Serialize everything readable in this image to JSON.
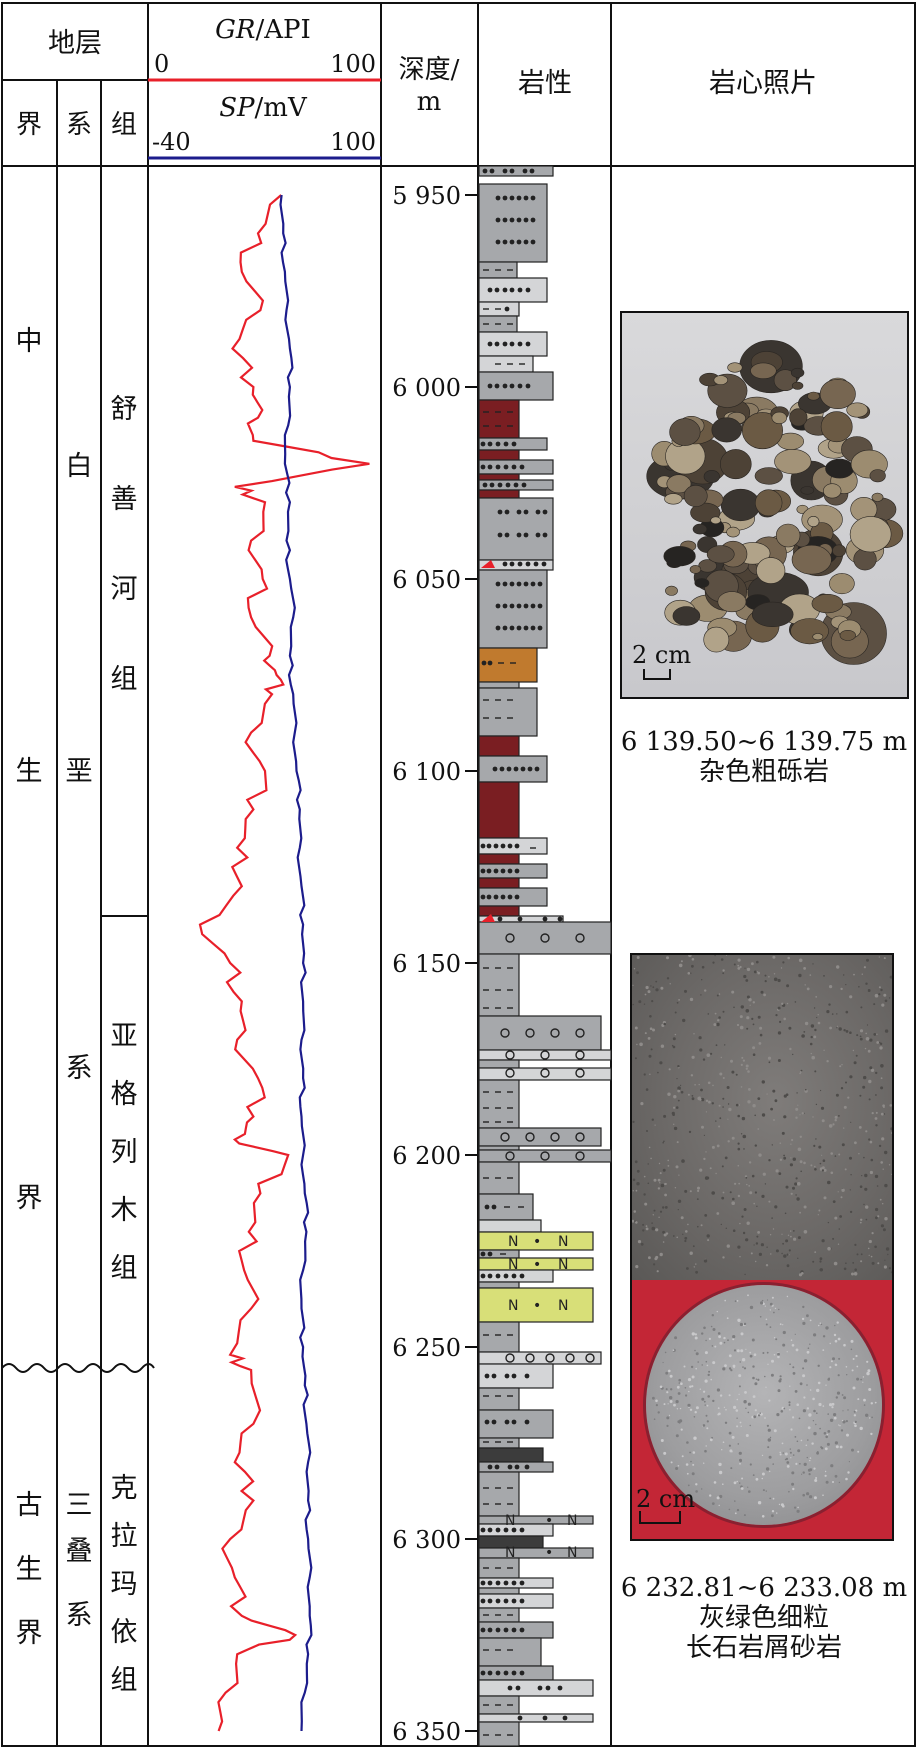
{
  "header": {
    "strata": "地层",
    "era": "界",
    "system": "系",
    "formation": "组",
    "gr_label": "GR",
    "gr_unit": "/API",
    "gr_min": "0",
    "gr_max": "100",
    "sp_label": "SP",
    "sp_unit": "/mV",
    "sp_min": "-40",
    "sp_max": "100",
    "depth_label": "深度/",
    "depth_unit": "m",
    "lithology": "岩性",
    "core_photos": "岩心照片"
  },
  "units": {
    "era_mesozoic": [
      "中",
      "生",
      "界"
    ],
    "era_paleozoic": [
      "古",
      "生",
      "界"
    ],
    "system_cretaceous": [
      "白",
      "垩",
      "系"
    ],
    "system_triassic": [
      "三",
      "叠",
      "系"
    ],
    "formation_shushanhe": [
      "舒",
      "善",
      "河",
      "组"
    ],
    "formation_yageliemu": [
      "亚",
      "格",
      "列",
      "木",
      "组"
    ],
    "formation_kelamayiyi": [
      "克",
      "拉",
      "玛",
      "依",
      "组"
    ]
  },
  "depth_ticks": [
    "5 950",
    "6 000",
    "6 050",
    "6 100",
    "6 150",
    "6 200",
    "6 250",
    "6 300",
    "6 350"
  ],
  "photos": [
    {
      "scale_label": "2 cm",
      "depth_caption": "6 139.50~6 139.75 m",
      "lith_caption": [
        "杂色粗砾岩"
      ]
    },
    {
      "scale_label": "2 cm",
      "depth_caption": "6 232.81~6 233.08 m",
      "lith_caption": [
        "灰绿色细粒",
        "长石岩屑砂岩"
      ]
    }
  ],
  "colors": {
    "gr_curve": "#e8202a",
    "sp_curve": "#1c1c8c",
    "lith_gray": "#a6a8ab",
    "lith_lightgray": "#d4d5d7",
    "lith_red": "#7a1e22",
    "lith_brown": "#c07a2e",
    "lith_yellow": "#d8df78",
    "lith_dark": "#3c3c3c"
  },
  "chart_data": {
    "type": "line",
    "depth_range_m": [
      5943,
      6353
    ],
    "series": [
      {
        "name": "GR",
        "unit": "API",
        "range": [
          0,
          100
        ],
        "depth": [
          5950,
          5960,
          5970,
          5980,
          5990,
          6000,
          6008,
          6014,
          6020,
          6026,
          6030,
          6040,
          6050,
          6060,
          6070,
          6075,
          6080,
          6090,
          6100,
          6110,
          6120,
          6130,
          6140,
          6150,
          6160,
          6170,
          6180,
          6190,
          6196,
          6200,
          6210,
          6220,
          6230,
          6240,
          6252,
          6256,
          6270,
          6280,
          6290,
          6300,
          6310,
          6320,
          6325,
          6330,
          6340,
          6350
        ],
        "values": [
          57,
          47,
          40,
          48,
          36,
          45,
          47,
          45,
          95,
          37,
          50,
          44,
          49,
          44,
          52,
          55,
          53,
          44,
          50,
          45,
          38,
          40,
          22,
          35,
          40,
          38,
          47,
          45,
          37,
          60,
          48,
          43,
          41,
          44,
          35,
          44,
          45,
          37,
          45,
          35,
          37,
          40,
          63,
          38,
          33,
          30
        ]
      },
      {
        "name": "SP",
        "unit": "mV",
        "range": [
          -40,
          100
        ],
        "depth": [
          5950,
          5960,
          5970,
          5980,
          5990,
          6000,
          6010,
          6020,
          6030,
          6040,
          6050,
          6060,
          6070,
          6080,
          6090,
          6100,
          6110,
          6120,
          6130,
          6140,
          6150,
          6160,
          6170,
          6180,
          6190,
          6200,
          6210,
          6220,
          6230,
          6240,
          6250,
          6260,
          6270,
          6280,
          6290,
          6300,
          6310,
          6320,
          6330,
          6340,
          6350
        ],
        "values": [
          40,
          41,
          42,
          43,
          45,
          45,
          44,
          42,
          45,
          43,
          45,
          47,
          45,
          47,
          48,
          49,
          51,
          51,
          52,
          53,
          53,
          53,
          52,
          53,
          52,
          53,
          54,
          55,
          53,
          52,
          53,
          54,
          55,
          56,
          56,
          56,
          57,
          57,
          56,
          54,
          52
        ]
      }
    ]
  }
}
